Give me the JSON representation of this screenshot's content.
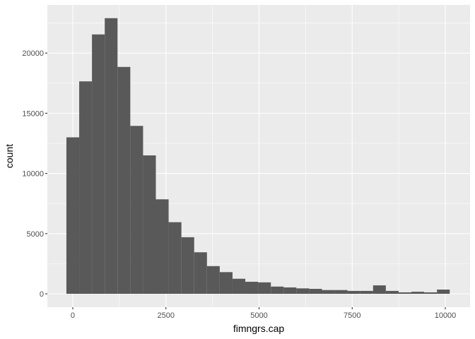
{
  "chart_data": {
    "type": "bar",
    "subtype": "histogram",
    "title": "",
    "xlabel": "fimngrs.cap",
    "ylabel": "count",
    "binwidth": 343,
    "bin_centers": [
      0,
      343,
      686,
      1029,
      1372,
      1715,
      2058,
      2401,
      2744,
      3087,
      3430,
      3773,
      4116,
      4459,
      4802,
      5145,
      5488,
      5831,
      6174,
      6517,
      6860,
      7203,
      7546,
      7889,
      8232,
      8575,
      8918,
      9261,
      9604,
      9947
    ],
    "values": [
      13000,
      17650,
      21550,
      22900,
      18850,
      13950,
      11500,
      7850,
      5950,
      4700,
      3450,
      2300,
      1800,
      1250,
      1000,
      950,
      600,
      530,
      450,
      410,
      310,
      310,
      240,
      240,
      700,
      240,
      120,
      170,
      120,
      350
    ],
    "xlim": [
      -683,
      10664
    ],
    "ylim": [
      -1115,
      24000
    ],
    "x_ticks": [
      0,
      2500,
      5000,
      7500,
      10000
    ],
    "y_ticks": [
      0,
      5000,
      10000,
      15000,
      20000
    ],
    "grid": true,
    "colors": {
      "bar": "#595959",
      "panel": "#ebebeb",
      "grid": "#ffffff"
    }
  }
}
